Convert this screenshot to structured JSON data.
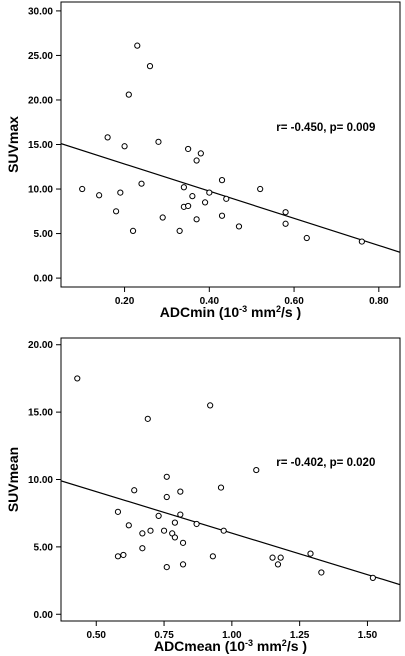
{
  "chart_data": [
    {
      "type": "scatter",
      "xlabel": "ADCmin (10",
      "xlabel_sup": "-3",
      "xlabel_tail": " mm",
      "xlabel_sup2": "2",
      "xlabel_end": "/s )",
      "ylabel": "SUVmax",
      "annotation": "r= -0.450, p= 0.009",
      "xlim": [
        0.05,
        0.85
      ],
      "ylim": [
        -1,
        31
      ],
      "xticks": [
        0.2,
        0.4,
        0.6,
        0.8
      ],
      "xtick_labels": [
        "0.20",
        "0.40",
        "0.60",
        "0.80"
      ],
      "yticks": [
        0,
        5,
        10,
        15,
        20,
        25,
        30
      ],
      "ytick_labels": [
        "0.00",
        "5.00",
        "10.00",
        "15.00",
        "20.00",
        "25.00",
        "30.00"
      ],
      "fit_line": {
        "x": [
          0.05,
          0.85
        ],
        "y": [
          15.1,
          2.9
        ]
      },
      "points": [
        {
          "x": 0.1,
          "y": 10.0
        },
        {
          "x": 0.14,
          "y": 9.3
        },
        {
          "x": 0.16,
          "y": 15.8
        },
        {
          "x": 0.18,
          "y": 7.5
        },
        {
          "x": 0.19,
          "y": 9.6
        },
        {
          "x": 0.2,
          "y": 14.8
        },
        {
          "x": 0.21,
          "y": 20.6
        },
        {
          "x": 0.22,
          "y": 5.3
        },
        {
          "x": 0.23,
          "y": 26.1
        },
        {
          "x": 0.24,
          "y": 10.6
        },
        {
          "x": 0.26,
          "y": 23.8
        },
        {
          "x": 0.28,
          "y": 15.3
        },
        {
          "x": 0.29,
          "y": 6.8
        },
        {
          "x": 0.33,
          "y": 5.3
        },
        {
          "x": 0.34,
          "y": 8.0
        },
        {
          "x": 0.34,
          "y": 10.2
        },
        {
          "x": 0.35,
          "y": 14.5
        },
        {
          "x": 0.35,
          "y": 8.1
        },
        {
          "x": 0.36,
          "y": 9.2
        },
        {
          "x": 0.37,
          "y": 13.2
        },
        {
          "x": 0.37,
          "y": 6.6
        },
        {
          "x": 0.38,
          "y": 14.0
        },
        {
          "x": 0.4,
          "y": 9.6
        },
        {
          "x": 0.39,
          "y": 8.5
        },
        {
          "x": 0.43,
          "y": 11.0
        },
        {
          "x": 0.43,
          "y": 7.0
        },
        {
          "x": 0.44,
          "y": 8.9
        },
        {
          "x": 0.47,
          "y": 5.8
        },
        {
          "x": 0.52,
          "y": 10.0
        },
        {
          "x": 0.58,
          "y": 7.4
        },
        {
          "x": 0.58,
          "y": 6.1
        },
        {
          "x": 0.63,
          "y": 4.5
        },
        {
          "x": 0.76,
          "y": 4.1
        }
      ]
    },
    {
      "type": "scatter",
      "xlabel": "ADCmean (10",
      "xlabel_sup": "-3",
      "xlabel_tail": " mm",
      "xlabel_sup2": "2",
      "xlabel_end": "/s )",
      "ylabel": "SUVmean",
      "annotation": "r= -0.402, p= 0.020",
      "xlim": [
        0.37,
        1.62
      ],
      "ylim": [
        -0.5,
        20.5
      ],
      "xticks": [
        0.5,
        0.75,
        1.0,
        1.25,
        1.5
      ],
      "xtick_labels": [
        "0.50",
        "0.75",
        "1.00",
        "1.25",
        "1.50"
      ],
      "yticks": [
        0,
        5,
        10,
        15,
        20
      ],
      "ytick_labels": [
        "0.00",
        "5.00",
        "10.00",
        "15.00",
        "20.00"
      ],
      "fit_line": {
        "x": [
          0.37,
          1.62
        ],
        "y": [
          9.9,
          2.2
        ]
      },
      "points": [
        {
          "x": 0.43,
          "y": 17.5
        },
        {
          "x": 0.58,
          "y": 7.6
        },
        {
          "x": 0.58,
          "y": 4.3
        },
        {
          "x": 0.6,
          "y": 4.4
        },
        {
          "x": 0.62,
          "y": 6.6
        },
        {
          "x": 0.64,
          "y": 9.2
        },
        {
          "x": 0.67,
          "y": 6.0
        },
        {
          "x": 0.67,
          "y": 4.9
        },
        {
          "x": 0.69,
          "y": 14.5
        },
        {
          "x": 0.7,
          "y": 6.2
        },
        {
          "x": 0.73,
          "y": 7.3
        },
        {
          "x": 0.75,
          "y": 6.2
        },
        {
          "x": 0.76,
          "y": 10.2
        },
        {
          "x": 0.76,
          "y": 8.7
        },
        {
          "x": 0.76,
          "y": 3.5
        },
        {
          "x": 0.78,
          "y": 6.0
        },
        {
          "x": 0.79,
          "y": 5.7
        },
        {
          "x": 0.79,
          "y": 6.8
        },
        {
          "x": 0.81,
          "y": 9.1
        },
        {
          "x": 0.81,
          "y": 7.4
        },
        {
          "x": 0.82,
          "y": 5.3
        },
        {
          "x": 0.82,
          "y": 3.7
        },
        {
          "x": 0.87,
          "y": 6.7
        },
        {
          "x": 0.92,
          "y": 15.5
        },
        {
          "x": 0.93,
          "y": 4.3
        },
        {
          "x": 0.96,
          "y": 9.4
        },
        {
          "x": 0.97,
          "y": 6.2
        },
        {
          "x": 1.09,
          "y": 10.7
        },
        {
          "x": 1.15,
          "y": 4.2
        },
        {
          "x": 1.17,
          "y": 3.7
        },
        {
          "x": 1.18,
          "y": 4.2
        },
        {
          "x": 1.29,
          "y": 4.5
        },
        {
          "x": 1.33,
          "y": 3.1
        },
        {
          "x": 1.52,
          "y": 2.7
        }
      ]
    }
  ]
}
